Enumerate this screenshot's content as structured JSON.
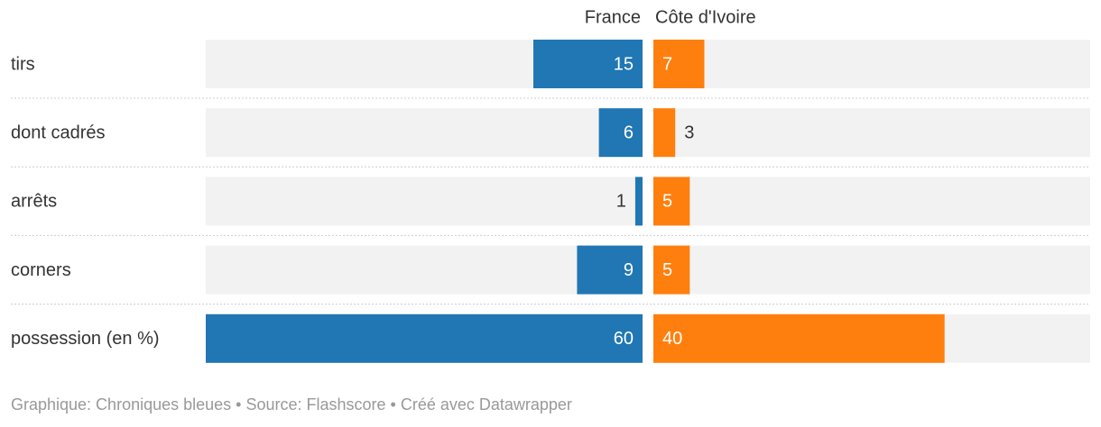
{
  "chart_data": {
    "type": "butterfly",
    "categories": [
      "tirs",
      "dont cadrés",
      "arrêts",
      "corners",
      "possession (en %)"
    ],
    "series": [
      {
        "name": "France",
        "color": "#2077b4",
        "values": [
          15,
          6,
          1,
          9,
          60
        ]
      },
      {
        "name": "Côte d'Ivoire",
        "color": "#ff7f0e",
        "values": [
          7,
          3,
          5,
          5,
          40
        ]
      }
    ],
    "xlim": [
      0,
      60
    ],
    "source": "Graphique: Chroniques bleues • Source: Flashscore • Créé avec Datawrapper"
  }
}
